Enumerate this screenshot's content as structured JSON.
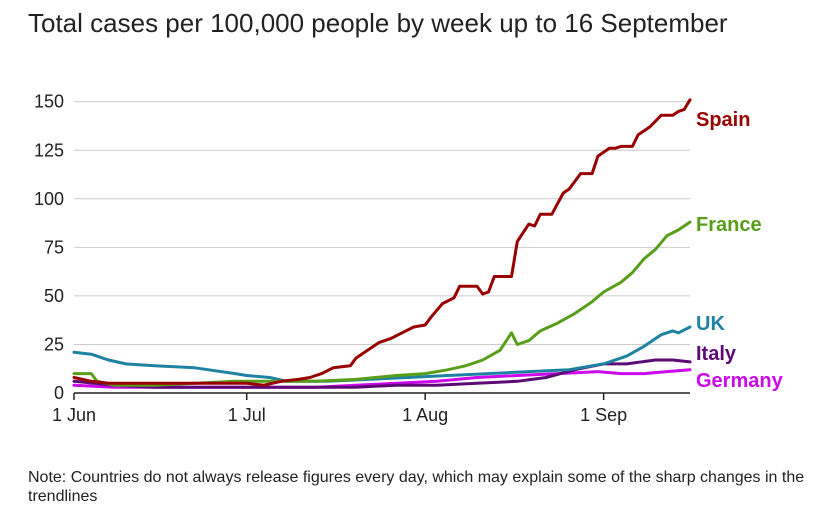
{
  "chart_data": {
    "type": "line",
    "title": "Total cases per 100,000 people by week up to 16 September",
    "note": "Note: Countries do not always release figures every day, which may explain some of the sharp changes in the trendlines",
    "xlabel": "",
    "ylabel": "",
    "x_axis": {
      "type": "date",
      "range": [
        "2020-06-01",
        "2020-09-16"
      ],
      "ticks": [
        {
          "date": "2020-06-01",
          "label": "1 Jun"
        },
        {
          "date": "2020-07-01",
          "label": "1 Jul"
        },
        {
          "date": "2020-08-01",
          "label": "1 Aug"
        },
        {
          "date": "2020-09-01",
          "label": "1 Sep"
        }
      ]
    },
    "y_axis": {
      "range": [
        0,
        155
      ],
      "ticks": [
        0,
        25,
        50,
        75,
        100,
        125,
        150
      ],
      "grid": true
    },
    "legend": "direct labels at line ends (right)",
    "series": [
      {
        "name": "Spain",
        "color": "#990000",
        "points": [
          [
            "2020-06-01",
            8
          ],
          [
            "2020-06-04",
            6
          ],
          [
            "2020-06-07",
            5
          ],
          [
            "2020-06-12",
            5
          ],
          [
            "2020-06-18",
            5
          ],
          [
            "2020-06-24",
            5
          ],
          [
            "2020-06-28",
            5
          ],
          [
            "2020-07-01",
            5
          ],
          [
            "2020-07-04",
            4
          ],
          [
            "2020-07-07",
            6
          ],
          [
            "2020-07-10",
            7
          ],
          [
            "2020-07-12",
            8
          ],
          [
            "2020-07-14",
            10
          ],
          [
            "2020-07-16",
            13
          ],
          [
            "2020-07-19",
            14
          ],
          [
            "2020-07-20",
            18
          ],
          [
            "2020-07-22",
            22
          ],
          [
            "2020-07-24",
            26
          ],
          [
            "2020-07-26",
            28
          ],
          [
            "2020-07-28",
            31
          ],
          [
            "2020-07-30",
            34
          ],
          [
            "2020-08-01",
            35
          ],
          [
            "2020-08-02",
            39
          ],
          [
            "2020-08-04",
            46
          ],
          [
            "2020-08-06",
            49
          ],
          [
            "2020-08-07",
            55
          ],
          [
            "2020-08-10",
            55
          ],
          [
            "2020-08-11",
            51
          ],
          [
            "2020-08-12",
            52
          ],
          [
            "2020-08-13",
            60
          ],
          [
            "2020-08-16",
            60
          ],
          [
            "2020-08-17",
            78
          ],
          [
            "2020-08-19",
            87
          ],
          [
            "2020-08-20",
            86
          ],
          [
            "2020-08-21",
            92
          ],
          [
            "2020-08-23",
            92
          ],
          [
            "2020-08-25",
            103
          ],
          [
            "2020-08-26",
            105
          ],
          [
            "2020-08-28",
            113
          ],
          [
            "2020-08-30",
            113
          ],
          [
            "2020-08-31",
            122
          ],
          [
            "2020-09-02",
            126
          ],
          [
            "2020-09-03",
            126
          ],
          [
            "2020-09-04",
            127
          ],
          [
            "2020-09-06",
            127
          ],
          [
            "2020-09-07",
            133
          ],
          [
            "2020-09-09",
            137
          ],
          [
            "2020-09-11",
            143
          ],
          [
            "2020-09-13",
            143
          ],
          [
            "2020-09-14",
            145
          ],
          [
            "2020-09-15",
            146
          ],
          [
            "2020-09-16",
            151
          ]
        ]
      },
      {
        "name": "France",
        "color": "#589E1A",
        "points": [
          [
            "2020-06-01",
            10
          ],
          [
            "2020-06-04",
            10
          ],
          [
            "2020-06-05",
            6
          ],
          [
            "2020-06-08",
            4
          ],
          [
            "2020-06-15",
            4
          ],
          [
            "2020-06-22",
            5
          ],
          [
            "2020-06-29",
            6
          ],
          [
            "2020-07-06",
            6
          ],
          [
            "2020-07-13",
            6
          ],
          [
            "2020-07-20",
            7
          ],
          [
            "2020-07-27",
            9
          ],
          [
            "2020-08-01",
            10
          ],
          [
            "2020-08-05",
            12
          ],
          [
            "2020-08-08",
            14
          ],
          [
            "2020-08-11",
            17
          ],
          [
            "2020-08-14",
            22
          ],
          [
            "2020-08-16",
            31
          ],
          [
            "2020-08-17",
            25
          ],
          [
            "2020-08-19",
            27
          ],
          [
            "2020-08-21",
            32
          ],
          [
            "2020-08-24",
            36
          ],
          [
            "2020-08-27",
            41
          ],
          [
            "2020-08-30",
            47
          ],
          [
            "2020-09-01",
            52
          ],
          [
            "2020-09-04",
            57
          ],
          [
            "2020-09-06",
            62
          ],
          [
            "2020-09-08",
            69
          ],
          [
            "2020-09-10",
            74
          ],
          [
            "2020-09-12",
            81
          ],
          [
            "2020-09-14",
            84
          ],
          [
            "2020-09-16",
            88
          ]
        ]
      },
      {
        "name": "UK",
        "color": "#1F82A3",
        "points": [
          [
            "2020-06-01",
            21
          ],
          [
            "2020-06-04",
            20
          ],
          [
            "2020-06-07",
            17
          ],
          [
            "2020-06-10",
            15
          ],
          [
            "2020-06-15",
            14
          ],
          [
            "2020-06-22",
            13
          ],
          [
            "2020-06-29",
            10
          ],
          [
            "2020-07-01",
            9
          ],
          [
            "2020-07-05",
            8
          ],
          [
            "2020-07-08",
            6
          ],
          [
            "2020-07-15",
            6
          ],
          [
            "2020-07-22",
            7
          ],
          [
            "2020-07-29",
            8
          ],
          [
            "2020-08-05",
            9
          ],
          [
            "2020-08-12",
            10
          ],
          [
            "2020-08-19",
            11
          ],
          [
            "2020-08-26",
            12
          ],
          [
            "2020-09-01",
            15
          ],
          [
            "2020-09-05",
            19
          ],
          [
            "2020-09-08",
            24
          ],
          [
            "2020-09-11",
            30
          ],
          [
            "2020-09-13",
            32
          ],
          [
            "2020-09-14",
            31
          ],
          [
            "2020-09-16",
            34
          ]
        ]
      },
      {
        "name": "Italy",
        "color": "#5C0A75",
        "points": [
          [
            "2020-06-01",
            6
          ],
          [
            "2020-06-08",
            4
          ],
          [
            "2020-06-15",
            3
          ],
          [
            "2020-06-22",
            3
          ],
          [
            "2020-06-29",
            3
          ],
          [
            "2020-07-06",
            3
          ],
          [
            "2020-07-13",
            3
          ],
          [
            "2020-07-20",
            3
          ],
          [
            "2020-07-27",
            4
          ],
          [
            "2020-08-03",
            4
          ],
          [
            "2020-08-10",
            5
          ],
          [
            "2020-08-17",
            6
          ],
          [
            "2020-08-22",
            8
          ],
          [
            "2020-08-27",
            12
          ],
          [
            "2020-09-01",
            15
          ],
          [
            "2020-09-05",
            15
          ],
          [
            "2020-09-10",
            17
          ],
          [
            "2020-09-13",
            17
          ],
          [
            "2020-09-16",
            16
          ]
        ]
      },
      {
        "name": "Germany",
        "color": "#CC0AEB",
        "points": [
          [
            "2020-06-01",
            4
          ],
          [
            "2020-06-08",
            3
          ],
          [
            "2020-06-15",
            3
          ],
          [
            "2020-06-22",
            3
          ],
          [
            "2020-06-29",
            3
          ],
          [
            "2020-07-06",
            3
          ],
          [
            "2020-07-13",
            3
          ],
          [
            "2020-07-20",
            4
          ],
          [
            "2020-07-27",
            5
          ],
          [
            "2020-08-03",
            6
          ],
          [
            "2020-08-10",
            8
          ],
          [
            "2020-08-17",
            9
          ],
          [
            "2020-08-24",
            10
          ],
          [
            "2020-08-31",
            11
          ],
          [
            "2020-09-04",
            10
          ],
          [
            "2020-09-08",
            10
          ],
          [
            "2020-09-12",
            11
          ],
          [
            "2020-09-16",
            12
          ]
        ]
      }
    ]
  }
}
